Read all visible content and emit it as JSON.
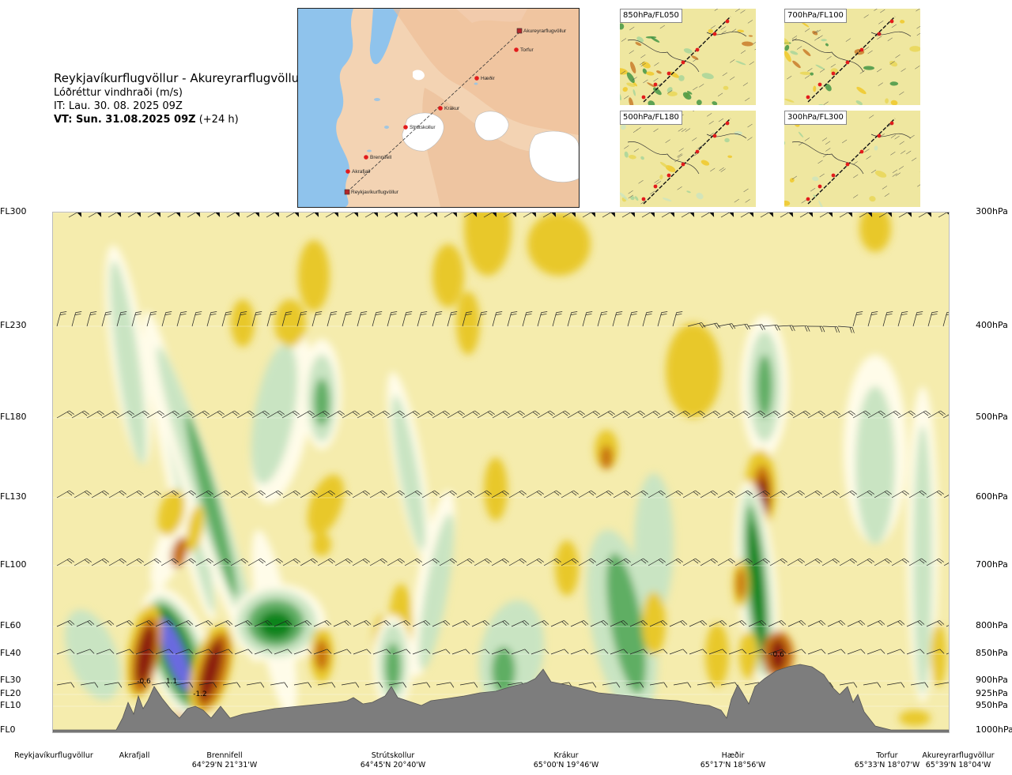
{
  "title": {
    "route": "Reykjavíkurflugvöllur - Akureyrarflugvöllur",
    "parameter": "Lóðréttur vindhraði (m/s)",
    "issue_time": "IT: Lau. 30. 08. 2025 09Z",
    "valid_label": "VT: Sun. 31.08.2025 09Z",
    "valid_lead": "(+24 h)"
  },
  "map": {
    "stations": [
      {
        "name": "Akureyrarflugvöllur"
      },
      {
        "name": "Torfur"
      },
      {
        "name": "Hæðir"
      },
      {
        "name": "Krákur"
      },
      {
        "name": "Strútskollur"
      },
      {
        "name": "Brennifell"
      },
      {
        "name": "Akrafjall"
      },
      {
        "name": "Reykjavíkurflugvöllur"
      }
    ]
  },
  "mini_maps": [
    {
      "label": "850hPa/FL050"
    },
    {
      "label": "700hPa/FL100"
    },
    {
      "label": "500hPa/FL180"
    },
    {
      "label": "300hPa/FL300"
    }
  ],
  "chart_data": {
    "type": "heatmap",
    "title": "Lóðréttur vindhraði (m/s)",
    "levels": [
      {
        "fl": "FL300",
        "hpa": "300hPa"
      },
      {
        "fl": "FL230",
        "hpa": "400hPa"
      },
      {
        "fl": "FL180",
        "hpa": "500hPa"
      },
      {
        "fl": "FL130",
        "hpa": "600hPa"
      },
      {
        "fl": "FL100",
        "hpa": "700hPa"
      },
      {
        "fl": "FL60",
        "hpa": "800hPa"
      },
      {
        "fl": "FL40",
        "hpa": "850hPa"
      },
      {
        "fl": "FL30",
        "hpa": "900hPa"
      },
      {
        "fl": "FL20",
        "hpa": "925hPa"
      },
      {
        "fl": "FL10",
        "hpa": "950hPa"
      },
      {
        "fl": "FL0",
        "hpa": "1000hPa"
      }
    ],
    "locations": [
      {
        "name": "Reykjavíkurflugvöllur",
        "coord": ""
      },
      {
        "name": "Akrafjall",
        "coord": ""
      },
      {
        "name": "Brennifell",
        "coord": "64°29'N 21°31'W"
      },
      {
        "name": "Strútskollur",
        "coord": "64°45'N 20°40'W"
      },
      {
        "name": "Krákur",
        "coord": "65°00'N 19°46'W"
      },
      {
        "name": "Hæðir",
        "coord": "65°17'N 18°56'W"
      },
      {
        "name": "Torfur",
        "coord": "65°33'N 18°07'W"
      },
      {
        "name": "Akureyrarflugvöllur",
        "coord": "65°39'N 18°04'W"
      }
    ],
    "value_labels": [
      "-0.6",
      "1.1",
      "-1.2",
      "-0.6"
    ],
    "colors": {
      "strong_down": "#8b1a0e",
      "down": "#c8720e",
      "weak_down": "#e8c829",
      "neutral": "#f5ecad",
      "weak_up": "#c9e4c2",
      "up": "#5fae63",
      "strong_up": "#08841a",
      "very_strong_up": "#6a6ae0",
      "terrain": "#7d7d7d"
    }
  }
}
